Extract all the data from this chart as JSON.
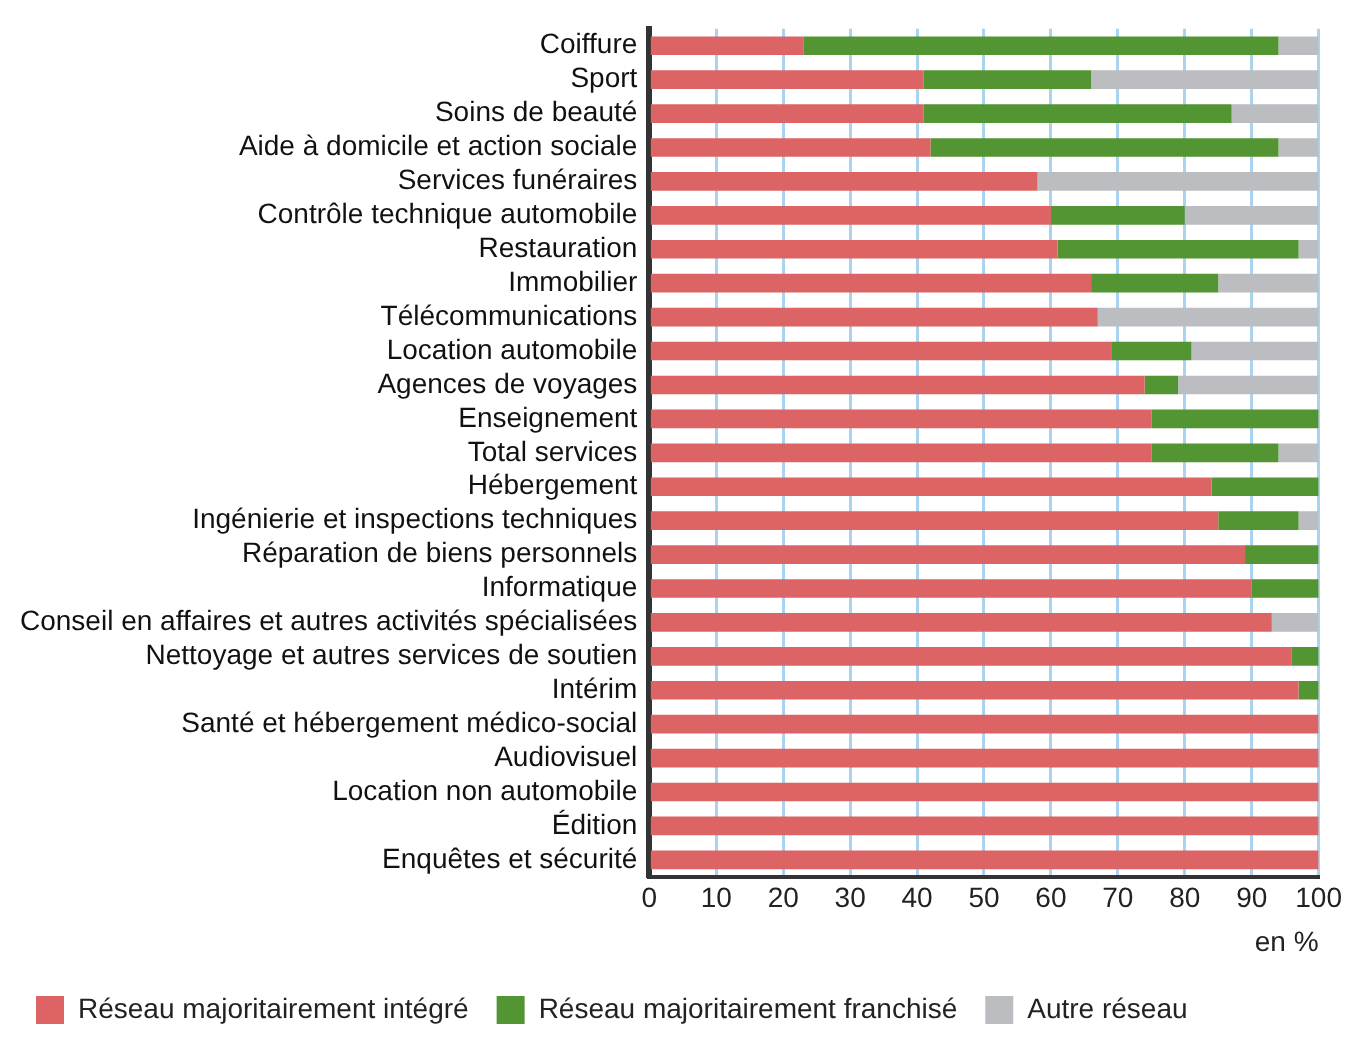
{
  "chart_data": {
    "type": "bar",
    "orientation": "horizontal",
    "stacked": true,
    "xlabel": "en %",
    "categories": [
      "Coiffure",
      "Sport",
      "Soins de beauté",
      "Aide à domicile et action sociale",
      "Services funéraires",
      "Contrôle technique automobile",
      "Restauration",
      "Immobilier",
      "Télécommunications",
      "Location automobile",
      "Agences de voyages",
      "Enseignement",
      "Total services",
      "Hébergement",
      "Ingénierie et inspections techniques",
      "Réparation de biens personnels",
      "Informatique",
      "Conseil en affaires et autres activités spécialisées",
      "Nettoyage et autres services de soutien",
      "Intérim",
      "Santé et hébergement médico-social",
      "Audiovisuel",
      "Location non automobile",
      "Édition",
      "Enquêtes et sécurité"
    ],
    "series": [
      {
        "name": "Réseau majoritairement intégré",
        "color": "#dc6464",
        "values": [
          23,
          41,
          41,
          42,
          58,
          60,
          61,
          66,
          67,
          69,
          74,
          75,
          75,
          84,
          85,
          89,
          90,
          93,
          96,
          97,
          100,
          100,
          100,
          100,
          100
        ]
      },
      {
        "name": "Réseau majoritairement franchisé",
        "color": "#539532",
        "values": [
          71,
          25,
          46,
          52,
          0,
          20,
          36,
          19,
          0,
          12,
          5,
          25,
          19,
          16,
          12,
          11,
          10,
          0,
          4,
          3,
          0,
          0,
          0,
          0,
          0
        ]
      },
      {
        "name": "Autre réseau",
        "color": "#bcbdc1",
        "values": [
          6,
          34,
          13,
          6,
          42,
          20,
          3,
          15,
          33,
          19,
          21,
          0,
          6,
          0,
          3,
          0,
          0,
          7,
          0,
          0,
          0,
          0,
          0,
          0,
          0
        ]
      }
    ],
    "xlim": [
      0,
      100
    ],
    "xticks": [
      0,
      10,
      20,
      30,
      40,
      50,
      60,
      70,
      80,
      90,
      100
    ],
    "grid": "x",
    "legend": "bottom"
  }
}
